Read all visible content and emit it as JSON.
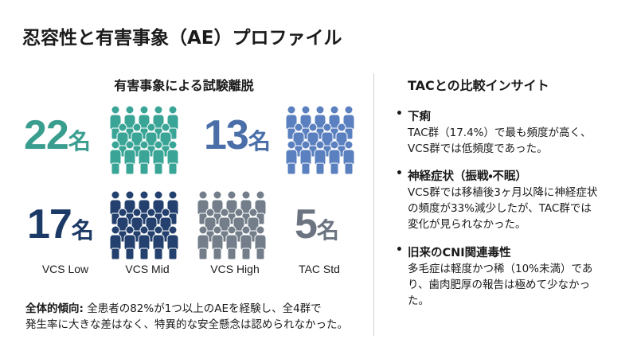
{
  "header": {
    "title": "忍容性と有害事象（AE）プロファイル"
  },
  "left": {
    "heading": "有害事象による試験離脱",
    "counts": [
      {
        "number": "22",
        "unit": "名"
      },
      {
        "number": "13",
        "unit": "名"
      },
      {
        "number": "17",
        "unit": "名"
      },
      {
        "number": "5",
        "unit": "名"
      }
    ],
    "labels": [
      "VCS Low",
      "VCS Mid",
      "VCS High",
      "TAC Std"
    ],
    "summary": {
      "lead": "全体的傾向:",
      "lines": [
        "全患者の82%が1つ以上のAEを経験し、全4群で",
        "発生率に大きな差はなく、特異的な安全懸念は認められなかった。"
      ]
    }
  },
  "right": {
    "heading": "TACとの比較インサイト",
    "items": [
      {
        "title": "下痢",
        "lines": [
          "TAC群（17.4%）で最も頻度が高く、",
          "VCS群では低頻度であった。"
        ]
      },
      {
        "title": "神経症状（振戦・不眠）",
        "lines": [
          "VCS群では移植後3ヶ月以降に神経症状",
          "の頻度が33%減少したが、TAC群では",
          "変化が見られなかった。"
        ]
      },
      {
        "title": "旧来のCNI関連毒性",
        "lines": [
          "多毛症は軽度かつ稀（10%未満）であ",
          "り、歯肉肥厚の報告は極めて少なかっ",
          "た。"
        ]
      }
    ]
  }
}
